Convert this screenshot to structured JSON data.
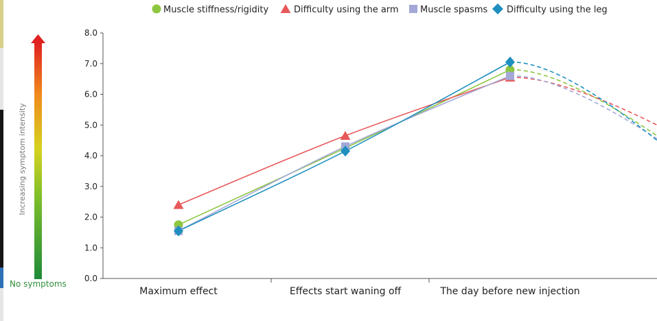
{
  "chart_data": {
    "type": "line",
    "title": "",
    "xlabel": "",
    "ylabel": "Increasing symptom intensity",
    "bottom_label": "No symptoms",
    "categories": [
      "Maximum effect",
      "Effects start waning off",
      "The day before new injection"
    ],
    "ylim": [
      0,
      8
    ],
    "yticks": [
      "0.0",
      "1.0",
      "2.0",
      "3.0",
      "4.0",
      "5.0",
      "6.0",
      "7.0",
      "8.0"
    ],
    "legend_position": "top",
    "series": [
      {
        "name": "Muscle stiffness/rigidity",
        "marker": "circle",
        "color": "#8dc63f",
        "values": [
          1.75,
          4.25,
          6.8
        ],
        "projection_end": 4.65
      },
      {
        "name": "Difficulty using the arm",
        "marker": "triangle",
        "color": "#e8585a",
        "values": [
          2.4,
          4.65,
          6.55
        ],
        "projection_end": 5.0
      },
      {
        "name": "Muscle spasms",
        "marker": "square",
        "color": "#a3a8d6",
        "values": [
          1.55,
          4.3,
          6.6
        ],
        "projection_end": 4.55
      },
      {
        "name": "Difficulty using the leg",
        "marker": "diamond",
        "color": "#1f8fbf",
        "values": [
          1.55,
          4.15,
          7.05
        ],
        "projection_end": 4.5
      }
    ]
  }
}
